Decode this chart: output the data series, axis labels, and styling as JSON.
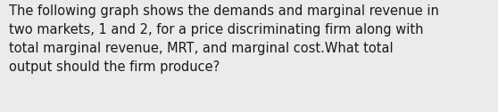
{
  "text": "The following graph shows the demands and marginal revenue in\ntwo markets, 1 and 2, for a price discriminating firm along with\ntotal marginal revenue, MRT, and marginal cost.What total\noutput should the firm produce?",
  "background_color": "#ebebeb",
  "text_color": "#1a1a1a",
  "font_size": 10.5,
  "fig_width": 5.58,
  "fig_height": 1.26,
  "dpi": 100
}
